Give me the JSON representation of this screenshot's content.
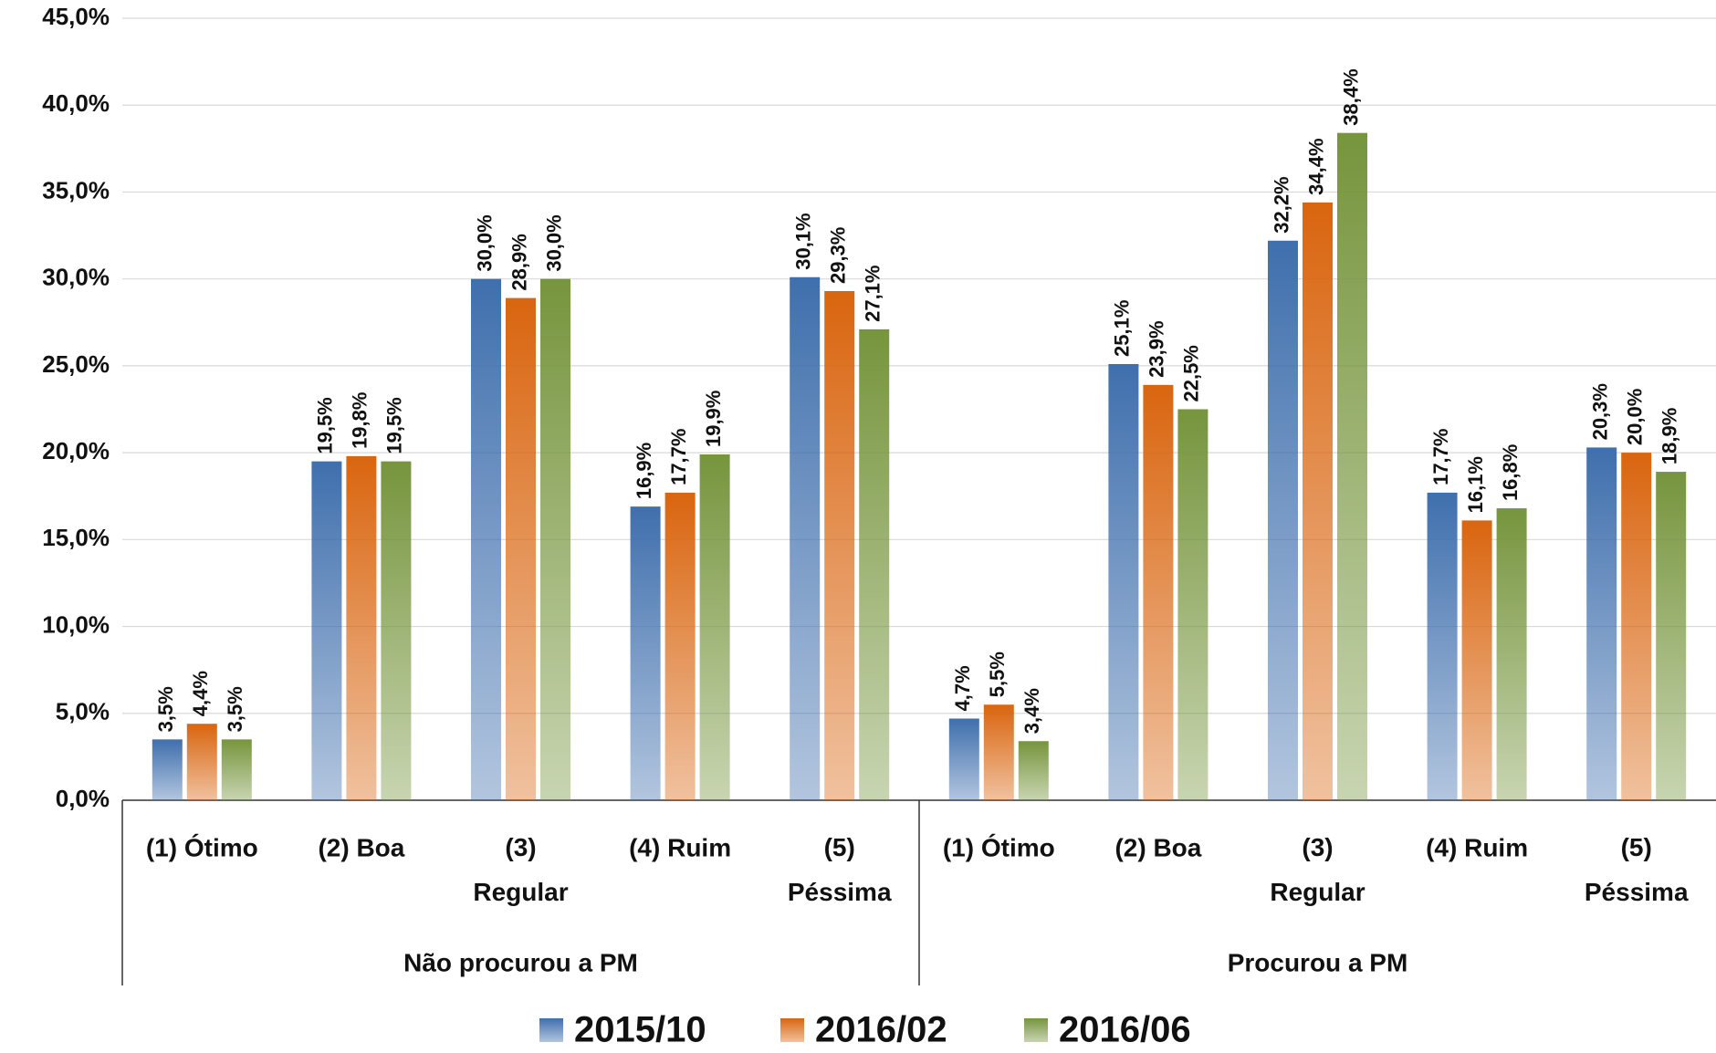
{
  "chart_data": {
    "type": "bar",
    "categories": [
      "(1) Ótimo",
      "(2) Boa",
      "(3) Regular",
      "(4) Ruim",
      "(5) Péssima",
      "(1) Ótimo",
      "(2) Boa",
      "(3) Regular",
      "(4) Ruim",
      "(5) Péssima"
    ],
    "groups": [
      "Não procurou a PM",
      "Procurou a PM"
    ],
    "series": [
      {
        "name": "2015/10",
        "color": "#3f6fad",
        "values": [
          3.5,
          19.5,
          30.0,
          16.9,
          30.1,
          4.7,
          25.1,
          32.2,
          17.7,
          20.3
        ],
        "value_labels": [
          "3,5%",
          "19,5%",
          "30,0%",
          "16,9%",
          "30,1%",
          "4,7%",
          "25,1%",
          "32,2%",
          "17,7%",
          "20,3%"
        ]
      },
      {
        "name": "2016/02",
        "color": "#d9650f",
        "values": [
          4.4,
          19.8,
          28.9,
          17.7,
          29.3,
          5.5,
          23.9,
          34.4,
          16.1,
          20.0
        ],
        "value_labels": [
          "4,4%",
          "19,8%",
          "28,9%",
          "17,7%",
          "29,3%",
          "5,5%",
          "23,9%",
          "34,4%",
          "16,1%",
          "20,0%"
        ]
      },
      {
        "name": "2016/06",
        "color": "#76953d",
        "values": [
          3.5,
          19.5,
          30.0,
          19.9,
          27.1,
          3.4,
          22.5,
          38.4,
          16.8,
          18.9
        ],
        "value_labels": [
          "3,5%",
          "19,5%",
          "30,0%",
          "19,9%",
          "27,1%",
          "3,4%",
          "22,5%",
          "38,4%",
          "16,8%",
          "18,9%"
        ]
      }
    ],
    "ylim": [
      0,
      45
    ],
    "yticks": [
      {
        "value": 0,
        "label": "0,0%"
      },
      {
        "value": 5,
        "label": "5,0%"
      },
      {
        "value": 10,
        "label": "10,0%"
      },
      {
        "value": 15,
        "label": "15,0%"
      },
      {
        "value": 20,
        "label": "20,0%"
      },
      {
        "value": 25,
        "label": "25,0%"
      },
      {
        "value": 30,
        "label": "30,0%"
      },
      {
        "value": 35,
        "label": "35,0%"
      },
      {
        "value": 40,
        "label": "40,0%"
      },
      {
        "value": 45,
        "label": "45,0%"
      }
    ],
    "grid": true,
    "legend": "bottom"
  }
}
